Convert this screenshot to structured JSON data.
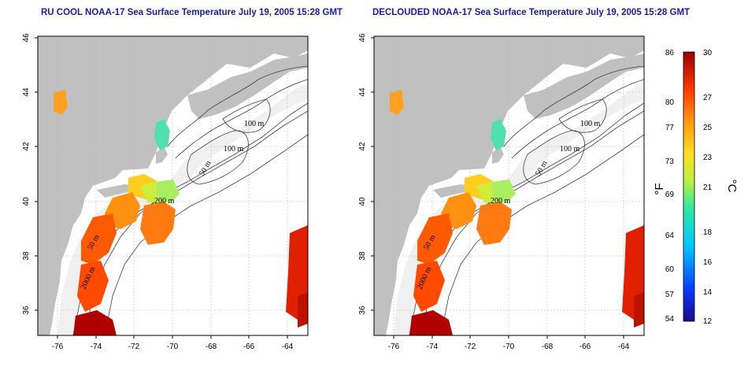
{
  "panels": [
    {
      "id": "left",
      "title": "RU COOL NOAA-17 Sea Surface Temperature July 19, 2005 15:28 GMT",
      "x_ticks": [
        "-76",
        "-74",
        "-72",
        "-70",
        "-68",
        "-66",
        "-64"
      ],
      "y_ticks": [
        "36",
        "38",
        "40",
        "42",
        "44",
        "46"
      ],
      "contour_labels": [
        "100 m",
        "100 m",
        "50 m",
        "200 m",
        "50 m",
        "2000 m"
      ]
    },
    {
      "id": "right",
      "title": "DECLOUDED NOAA-17 Sea Surface Temperature July 19, 2005 15:28 GMT",
      "x_ticks": [
        "-76",
        "-74",
        "-72",
        "-70",
        "-68",
        "-66",
        "-64"
      ],
      "y_ticks": [
        "36",
        "38",
        "40",
        "42",
        "44",
        "46"
      ],
      "contour_labels": [
        "100 m",
        "100 m",
        "50 m",
        "200 m",
        "50 m",
        "2000 m"
      ]
    }
  ],
  "colorbar": {
    "fahrenheit_ticks": [
      "86",
      "80",
      "77",
      "73",
      "69",
      "64",
      "60",
      "57",
      "54"
    ],
    "celsius_ticks": [
      "30",
      "27",
      "25",
      "23",
      "21",
      "18",
      "16",
      "14",
      "12"
    ],
    "fahrenheit_unit": "°F",
    "celsius_unit": "°C",
    "range_celsius": [
      12,
      30
    ]
  },
  "colors": {
    "land": "#c0c0c0",
    "ocean": "#ffffff",
    "title": "#1a1aa6",
    "contour": "#404040",
    "grid": "#b8b8b8"
  }
}
